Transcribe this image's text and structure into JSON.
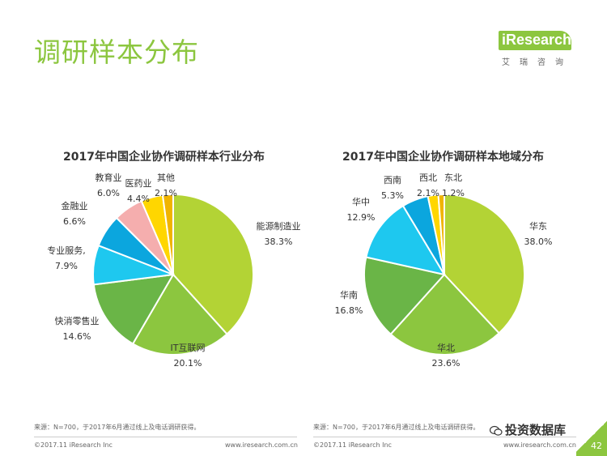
{
  "header": {
    "title": "调研样本分布",
    "logo_text": "iResearch",
    "logo_sub": "艾瑞咨询"
  },
  "colors": {
    "accent": "#8cc63f",
    "slices": [
      "#b3d335",
      "#8cc63f",
      "#6ab547",
      "#1ec8ef",
      "#0ba6de",
      "#f5aeae",
      "#ffd600",
      "#f0b400"
    ]
  },
  "chart_data": [
    {
      "type": "pie",
      "title": "2017年中国企业协作调研样本行业分布",
      "categories": [
        "能源制造业",
        "IT互联网",
        "快消零售业",
        "专业服务,",
        "金融业",
        "教育业",
        "医药业",
        "其他"
      ],
      "values": [
        38.3,
        20.1,
        14.6,
        7.9,
        6.6,
        6.0,
        4.4,
        2.1
      ],
      "labels": [
        "38.3%",
        "20.1%",
        "14.6%",
        "7.9%",
        "6.6%",
        "6.0%",
        "4.4%",
        "2.1%"
      ]
    },
    {
      "type": "pie",
      "title": "2017年中国企业协作调研样本地域分布",
      "categories": [
        "华东",
        "华北",
        "华南",
        "华中",
        "西南",
        "西北",
        "东北"
      ],
      "values": [
        38.0,
        23.6,
        16.8,
        12.9,
        5.3,
        2.1,
        1.2
      ],
      "labels": [
        "38.0%",
        "23.6%",
        "16.8%",
        "12.9%",
        "5.3%",
        "2.1%",
        "1.2%"
      ]
    }
  ],
  "footer": {
    "source": "来源：N=700，于2017年6月通过线上及电话调研获得。",
    "copyright": "©2017.11 iResearch Inc",
    "website": "www.iresearch.com.cn",
    "wechat": "投资数据库",
    "page": "42"
  }
}
